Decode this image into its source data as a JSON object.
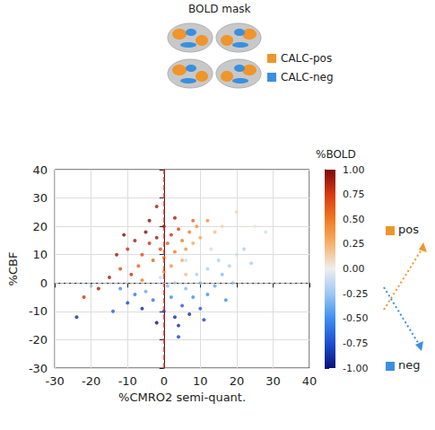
{
  "chart_data": {
    "type": "scatter",
    "x_label": "%CMRO2 semi-quant.",
    "y_label": "%CBF",
    "xlim": [
      -30,
      40
    ],
    "ylim": [
      -30,
      40
    ],
    "xticks": [
      -30,
      -20,
      -10,
      0,
      10,
      20,
      30,
      40
    ],
    "yticks": [
      -30,
      -20,
      -10,
      0,
      10,
      20,
      30,
      40
    ],
    "grid": true,
    "vline": 0,
    "hline": 0,
    "points": [
      [
        -10,
        12,
        0.8
      ],
      [
        -8,
        15,
        0.9
      ],
      [
        -6,
        10,
        0.7
      ],
      [
        -5,
        18,
        1.0
      ],
      [
        -4,
        14,
        0.8
      ],
      [
        -3,
        8,
        0.6
      ],
      [
        -2,
        16,
        0.9
      ],
      [
        -1,
        12,
        0.7
      ],
      [
        0,
        20,
        1.0
      ],
      [
        0,
        9,
        0.5
      ],
      [
        1,
        14,
        0.6
      ],
      [
        2,
        17,
        0.8
      ],
      [
        2,
        6,
        0.4
      ],
      [
        3,
        11,
        0.5
      ],
      [
        4,
        19,
        0.7
      ],
      [
        5,
        15,
        0.5
      ],
      [
        5,
        8,
        0.3
      ],
      [
        6,
        12,
        0.4
      ],
      [
        7,
        18,
        0.5
      ],
      [
        8,
        14,
        0.3
      ],
      [
        9,
        20,
        0.4
      ],
      [
        10,
        16,
        0.3
      ],
      [
        12,
        22,
        0.4
      ],
      [
        -12,
        5,
        0.7
      ],
      [
        -9,
        3,
        0.8
      ],
      [
        -7,
        6,
        0.6
      ],
      [
        -15,
        2,
        0.9
      ],
      [
        -18,
        -2,
        0.9
      ],
      [
        -22,
        -5,
        0.8
      ],
      [
        -13,
        10,
        0.9
      ],
      [
        -4,
        22,
        1.0
      ],
      [
        3,
        23,
        0.9
      ],
      [
        14,
        18,
        0.2
      ],
      [
        -11,
        17,
        1.0
      ],
      [
        0,
        4,
        0.4
      ],
      [
        -6,
        1,
        0.5
      ],
      [
        6,
        3,
        0.2
      ],
      [
        16,
        20,
        0.1
      ],
      [
        20,
        25,
        0.1
      ],
      [
        25,
        20,
        0.05
      ],
      [
        -2,
        27,
        0.9
      ],
      [
        8,
        22,
        0.6
      ],
      [
        -5,
        -3,
        -0.4
      ],
      [
        -3,
        -6,
        -0.6
      ],
      [
        0,
        -10,
        -0.8
      ],
      [
        2,
        -5,
        -0.5
      ],
      [
        3,
        -12,
        -0.9
      ],
      [
        5,
        -8,
        -0.7
      ],
      [
        6,
        -2,
        -0.3
      ],
      [
        7,
        -11,
        -0.9
      ],
      [
        8,
        -5,
        -0.5
      ],
      [
        10,
        -9,
        -0.7
      ],
      [
        10,
        0,
        -0.3
      ],
      [
        12,
        -4,
        -0.5
      ],
      [
        12,
        5,
        -0.2
      ],
      [
        14,
        -1,
        -0.4
      ],
      [
        15,
        8,
        -0.2
      ],
      [
        16,
        3,
        -0.3
      ],
      [
        18,
        6,
        -0.2
      ],
      [
        20,
        10,
        -0.1
      ],
      [
        22,
        12,
        -0.2
      ],
      [
        -8,
        -4,
        -0.6
      ],
      [
        -10,
        -7,
        -0.8
      ],
      [
        -6,
        -9,
        -0.9
      ],
      [
        -2,
        -14,
        -1.0
      ],
      [
        4,
        -15,
        -0.9
      ],
      [
        1,
        -1,
        -0.3
      ],
      [
        -1,
        2,
        -0.1
      ],
      [
        9,
        3,
        -0.2
      ],
      [
        11,
        -13,
        -0.8
      ],
      [
        17,
        -6,
        -0.5
      ],
      [
        19,
        0,
        -0.3
      ],
      [
        24,
        7,
        -0.2
      ],
      [
        -14,
        -10,
        -0.7
      ],
      [
        -12,
        -2,
        -0.5
      ],
      [
        6,
        8,
        -0.1
      ],
      [
        13,
        12,
        -0.1
      ],
      [
        3,
        0,
        -0.2
      ],
      [
        28,
        18,
        -0.1
      ],
      [
        -24,
        -12,
        -0.9
      ],
      [
        -20,
        -1,
        -0.2
      ],
      [
        4,
        -19,
        -0.8
      ]
    ],
    "colorbar": {
      "title": "%BOLD",
      "lim": [
        -1,
        1
      ],
      "ticks": [
        {
          "value": 1,
          "label": "1.00"
        },
        {
          "value": 0.75,
          "label": "0.75"
        },
        {
          "value": 0.5,
          "label": "0.50"
        },
        {
          "value": 0.25,
          "label": "0.25"
        },
        {
          "value": 0,
          "label": "0.00"
        },
        {
          "value": -0.25,
          "label": "-0.25"
        },
        {
          "value": -0.5,
          "label": "-0.50"
        },
        {
          "value": -0.75,
          "label": "-0.75"
        },
        {
          "value": -1,
          "label": "-1.00"
        }
      ]
    },
    "mask": {
      "title": "BOLD mask",
      "legend": [
        {
          "name": "CALC-pos",
          "color": "#f0952a"
        },
        {
          "name": "CALC-neg",
          "color": "#3a8fe0"
        }
      ]
    },
    "annotations": [
      {
        "text": "pos",
        "color": "#f0952a"
      },
      {
        "text": "neg",
        "color": "#3a8fe0"
      }
    ]
  }
}
